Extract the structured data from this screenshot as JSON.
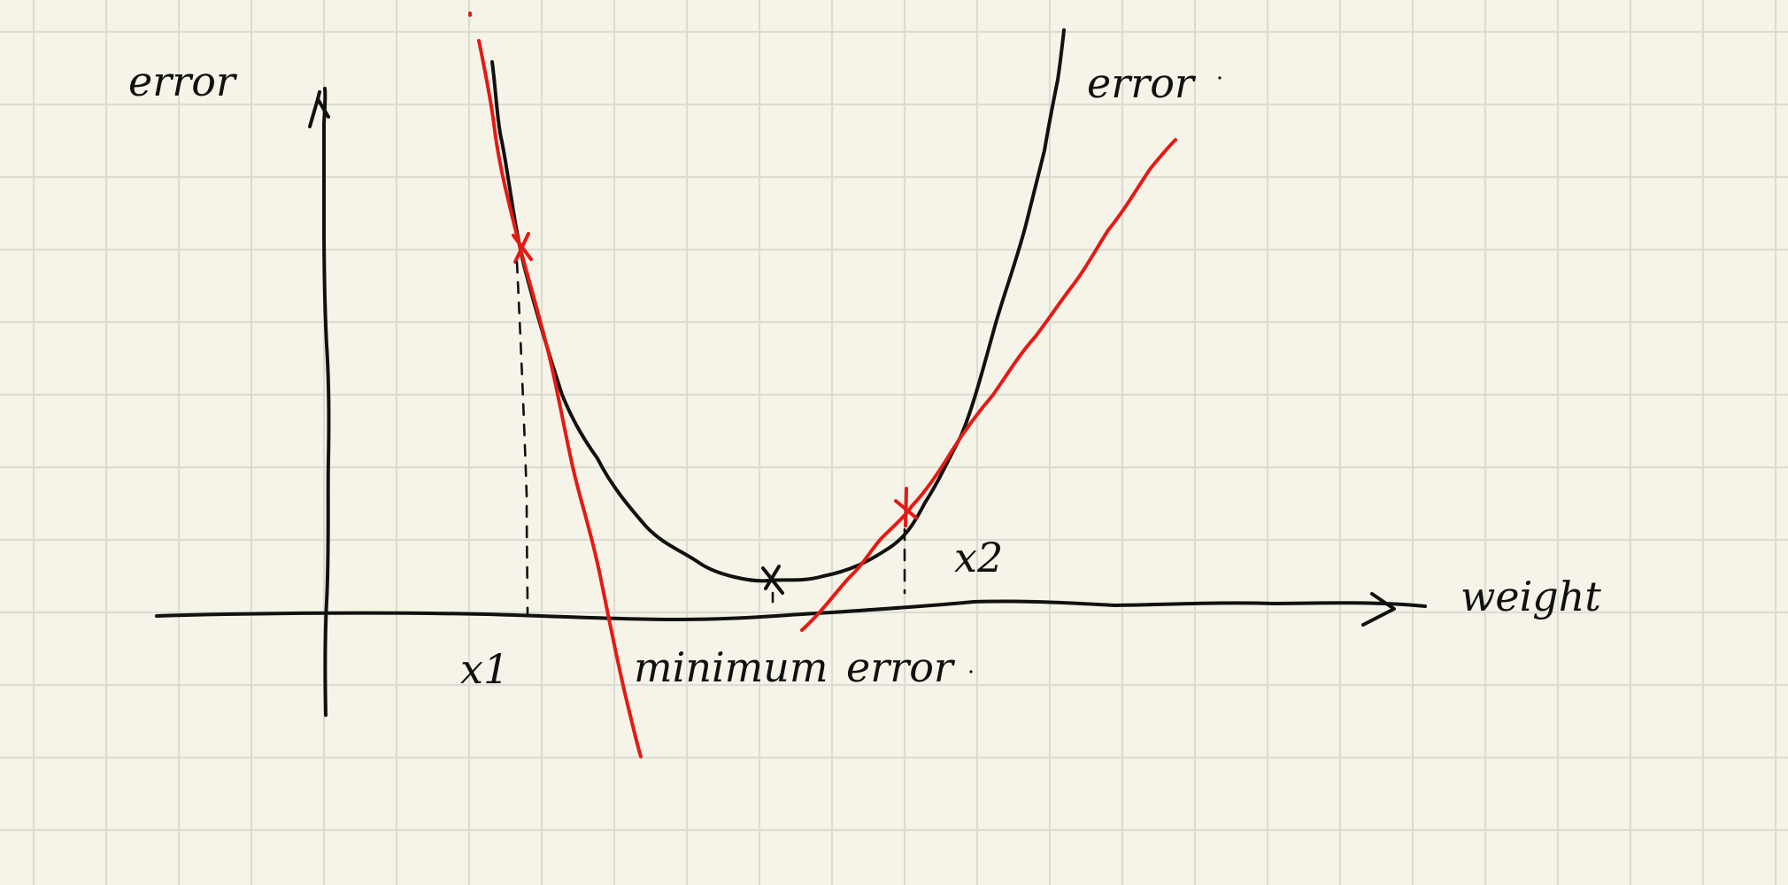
{
  "labels": {
    "y_axis": "error",
    "curve_black": "error",
    "x_axis": "weight",
    "x1": "x1",
    "x2": "x2",
    "bottom_left": "minimum",
    "bottom_right": "error"
  },
  "colors": {
    "background": "#f6f4e8",
    "grid": "#dcdcd2",
    "ink": "#111111",
    "tangent": "#e41a14"
  }
}
